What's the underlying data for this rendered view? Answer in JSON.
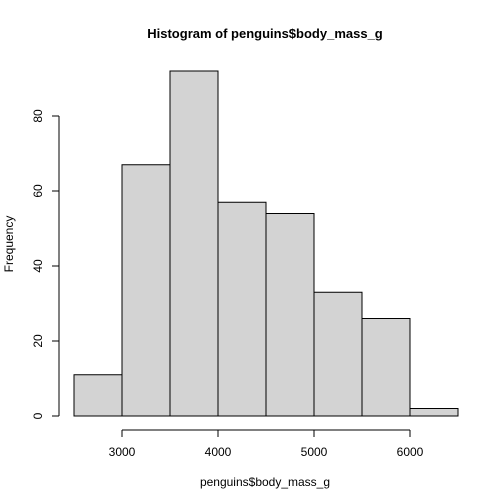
{
  "chart_data": {
    "type": "bar",
    "title": "Histogram of penguins$body_mass_g",
    "xlabel": "penguins$body_mass_g",
    "ylabel": "Frequency",
    "bins": [
      {
        "x0": 2500,
        "x1": 3000,
        "count": 11
      },
      {
        "x0": 3000,
        "x1": 3500,
        "count": 67
      },
      {
        "x0": 3500,
        "x1": 4000,
        "count": 92
      },
      {
        "x0": 4000,
        "x1": 4500,
        "count": 57
      },
      {
        "x0": 4500,
        "x1": 5000,
        "count": 54
      },
      {
        "x0": 5000,
        "x1": 5500,
        "count": 33
      },
      {
        "x0": 5500,
        "x1": 6000,
        "count": 26
      },
      {
        "x0": 6000,
        "x1": 6500,
        "count": 2
      }
    ],
    "xticks": [
      3000,
      4000,
      5000,
      6000
    ],
    "yticks": [
      0,
      20,
      40,
      60,
      80
    ],
    "xlim": [
      2500,
      6500
    ],
    "ylim": [
      0,
      92
    ],
    "bar_color": "#d3d3d3",
    "grid": false
  }
}
